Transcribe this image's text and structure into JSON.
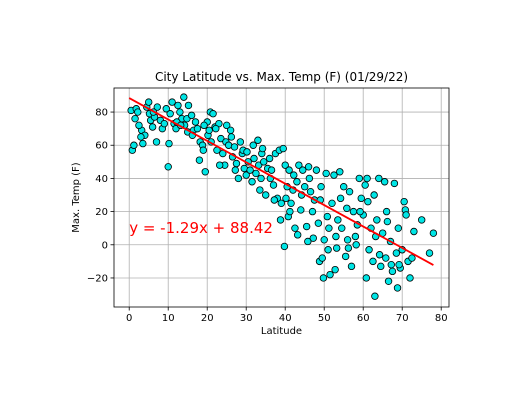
{
  "chart_data": {
    "type": "scatter",
    "title": "City Latitude vs. Max. Temp (F) (01/29/22)",
    "xlabel": "Latitude",
    "ylabel": "Max. Temp (F)",
    "xlim": [
      -3.9,
      82.0
    ],
    "ylim": [
      -37.5,
      94.5
    ],
    "xticks": [
      0,
      10,
      20,
      30,
      40,
      50,
      60,
      70,
      80
    ],
    "yticks": [
      -20,
      0,
      20,
      40,
      60,
      80
    ],
    "grid": true,
    "marker_color": "#00e5e5",
    "marker_edge_color": "#000000",
    "regression": {
      "slope": -1.29,
      "intercept": 88.42,
      "x_range": [
        0,
        78
      ],
      "color": "#ff0000",
      "label": "y = -1.29x + 88.42"
    },
    "points": [
      [
        0.5,
        81
      ],
      [
        0.8,
        57
      ],
      [
        1.2,
        60
      ],
      [
        1.5,
        76
      ],
      [
        1.8,
        82
      ],
      [
        2.2,
        80
      ],
      [
        3.2,
        69
      ],
      [
        3.5,
        61
      ],
      [
        4,
        66
      ],
      [
        4.5,
        83
      ],
      [
        5,
        86
      ],
      [
        5.2,
        79
      ],
      [
        5.5,
        75
      ],
      [
        6,
        71
      ],
      [
        6.5,
        77
      ],
      [
        7,
        62
      ],
      [
        7.2,
        83
      ],
      [
        8,
        75
      ],
      [
        8.5,
        70
      ],
      [
        9,
        73
      ],
      [
        10,
        47
      ],
      [
        10.2,
        61
      ],
      [
        10.5,
        79
      ],
      [
        11,
        86
      ],
      [
        11.5,
        73
      ],
      [
        12,
        70
      ],
      [
        12.5,
        84
      ],
      [
        13,
        80
      ],
      [
        13.5,
        76
      ],
      [
        14,
        89
      ],
      [
        14.2,
        72
      ],
      [
        14.8,
        76
      ],
      [
        15,
        68
      ],
      [
        15.2,
        84
      ],
      [
        16,
        78
      ],
      [
        16.5,
        69
      ],
      [
        17,
        74
      ],
      [
        17.5,
        70
      ],
      [
        18,
        51
      ],
      [
        18.2,
        62
      ],
      [
        18.8,
        60
      ],
      [
        19,
        57
      ],
      [
        19.5,
        44
      ],
      [
        20,
        74
      ],
      [
        20.2,
        66
      ],
      [
        20.5,
        69
      ],
      [
        20.8,
        80
      ],
      [
        21,
        62
      ],
      [
        21.5,
        79
      ],
      [
        22,
        71
      ],
      [
        22.5,
        57
      ],
      [
        23,
        73
      ],
      [
        23.5,
        64
      ],
      [
        24,
        55
      ],
      [
        24.5,
        48
      ],
      [
        24.8,
        62
      ],
      [
        25,
        72
      ],
      [
        25.5,
        60
      ],
      [
        26,
        69
      ],
      [
        26.5,
        53
      ],
      [
        27,
        59
      ],
      [
        27.5,
        49
      ],
      [
        28,
        40
      ],
      [
        28.5,
        62
      ],
      [
        29,
        55
      ],
      [
        29.5,
        46
      ],
      [
        30,
        42
      ],
      [
        30.5,
        50
      ],
      [
        31,
        45
      ],
      [
        31.5,
        38
      ],
      [
        31.8,
        60
      ],
      [
        32,
        52
      ],
      [
        32.5,
        43
      ],
      [
        33,
        63
      ],
      [
        33.2,
        48
      ],
      [
        33.5,
        33
      ],
      [
        34,
        55
      ],
      [
        34.5,
        50
      ],
      [
        35,
        30
      ],
      [
        35.5,
        46
      ],
      [
        36,
        52
      ],
      [
        36.5,
        45
      ],
      [
        37,
        36
      ],
      [
        37.5,
        55
      ],
      [
        38,
        28
      ],
      [
        38.5,
        57
      ],
      [
        38.8,
        15
      ],
      [
        39,
        25
      ],
      [
        39.5,
        58
      ],
      [
        39.8,
        -1
      ],
      [
        40,
        48
      ],
      [
        40.5,
        35
      ],
      [
        40.8,
        17
      ],
      [
        41,
        45
      ],
      [
        41.5,
        25
      ],
      [
        42,
        33
      ],
      [
        42.5,
        10
      ],
      [
        43,
        38
      ],
      [
        43.5,
        48
      ],
      [
        44,
        21
      ],
      [
        44.5,
        45
      ],
      [
        45,
        35
      ],
      [
        45.5,
        11
      ],
      [
        45.8,
        2
      ],
      [
        46,
        47
      ],
      [
        46.5,
        32
      ],
      [
        47,
        20
      ],
      [
        47.5,
        27
      ],
      [
        48,
        45
      ],
      [
        48.5,
        13
      ],
      [
        48.8,
        -10
      ],
      [
        49,
        27
      ],
      [
        49.5,
        -8
      ],
      [
        49.8,
        -20
      ],
      [
        50,
        3
      ],
      [
        50.5,
        43
      ],
      [
        50.8,
        17
      ],
      [
        51,
        -3
      ],
      [
        51.5,
        -18
      ],
      [
        52,
        25
      ],
      [
        52.5,
        42
      ],
      [
        52.8,
        -15
      ],
      [
        53,
        5
      ],
      [
        53.5,
        15
      ],
      [
        54,
        44
      ],
      [
        54.5,
        10
      ],
      [
        55,
        35
      ],
      [
        55.5,
        -7
      ],
      [
        55.8,
        22
      ],
      [
        56,
        3
      ],
      [
        56.5,
        32
      ],
      [
        57,
        -13
      ],
      [
        57.5,
        20
      ],
      [
        58,
        5
      ],
      [
        58.5,
        12
      ],
      [
        59,
        40
      ],
      [
        59.5,
        28
      ],
      [
        60,
        18
      ],
      [
        60.5,
        36
      ],
      [
        60.8,
        -20
      ],
      [
        61,
        40
      ],
      [
        61.5,
        -3
      ],
      [
        62,
        10
      ],
      [
        62.5,
        -10
      ],
      [
        62.8,
        30
      ],
      [
        63,
        -31
      ],
      [
        63.5,
        15
      ],
      [
        64,
        40
      ],
      [
        64.5,
        -13
      ],
      [
        65,
        7
      ],
      [
        65.5,
        38
      ],
      [
        65.8,
        -8
      ],
      [
        66,
        20
      ],
      [
        66.5,
        -22
      ],
      [
        67,
        2
      ],
      [
        67.5,
        -16
      ],
      [
        68,
        37
      ],
      [
        68.5,
        -5
      ],
      [
        68.8,
        -26
      ],
      [
        69,
        10
      ],
      [
        69.5,
        -14
      ],
      [
        70,
        -3
      ],
      [
        70.5,
        26
      ],
      [
        70.8,
        21
      ],
      [
        71,
        18
      ],
      [
        71.5,
        -10
      ],
      [
        72,
        -20
      ],
      [
        72.5,
        -8
      ],
      [
        73,
        8
      ],
      [
        75,
        15
      ],
      [
        77,
        -5
      ],
      [
        78,
        7
      ],
      [
        2.5,
        72
      ],
      [
        3,
        65
      ],
      [
        6.2,
        80
      ],
      [
        9.5,
        82
      ],
      [
        12.2,
        74
      ],
      [
        13.2,
        72
      ],
      [
        16.2,
        66
      ],
      [
        19.2,
        72
      ],
      [
        22.2,
        70
      ],
      [
        23.2,
        48
      ],
      [
        26.2,
        65
      ],
      [
        27.2,
        45
      ],
      [
        29.2,
        57
      ],
      [
        30.2,
        56
      ],
      [
        33.8,
        40
      ],
      [
        34.2,
        58
      ],
      [
        36.2,
        40
      ],
      [
        37.2,
        27
      ],
      [
        40.2,
        28
      ],
      [
        41.2,
        20
      ],
      [
        42.2,
        42
      ],
      [
        43.2,
        6
      ],
      [
        44.2,
        30
      ],
      [
        46.2,
        40
      ],
      [
        47.2,
        4
      ],
      [
        49.2,
        35
      ],
      [
        51.2,
        10
      ],
      [
        53.2,
        -2
      ],
      [
        54.2,
        28
      ],
      [
        56.2,
        -2
      ],
      [
        58.2,
        0
      ],
      [
        59.2,
        20
      ],
      [
        61.2,
        26
      ],
      [
        63.2,
        5
      ],
      [
        64.2,
        -6
      ],
      [
        66.2,
        14
      ],
      [
        67.2,
        -12
      ],
      [
        69.2,
        -12
      ]
    ]
  }
}
